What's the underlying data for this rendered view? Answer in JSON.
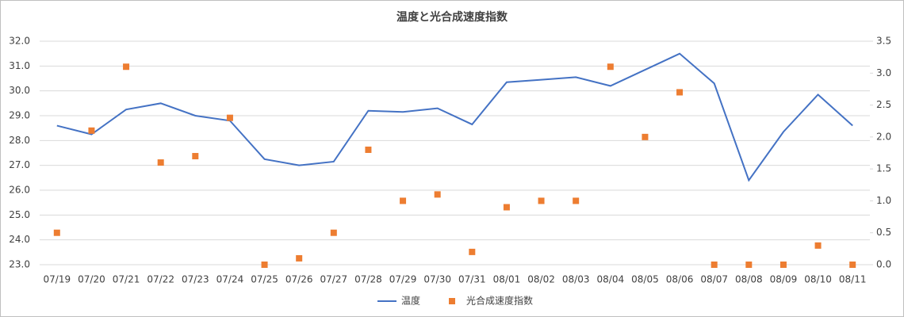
{
  "chart_data": {
    "type": "combo",
    "title": "温度と光合成速度指数",
    "categories": [
      "07/19",
      "07/20",
      "07/21",
      "07/22",
      "07/23",
      "07/24",
      "07/25",
      "07/26",
      "07/27",
      "07/28",
      "07/29",
      "07/30",
      "07/31",
      "08/01",
      "08/02",
      "08/03",
      "08/04",
      "08/05",
      "08/06",
      "08/07",
      "08/08",
      "08/09",
      "08/10",
      "08/11"
    ],
    "series": [
      {
        "name": "温度",
        "type": "line",
        "color": "#4472c4",
        "axis": "y",
        "values": [
          28.6,
          28.25,
          29.25,
          29.5,
          29.0,
          28.8,
          27.25,
          27.0,
          27.15,
          29.2,
          29.15,
          29.3,
          28.65,
          30.35,
          30.45,
          30.55,
          30.2,
          30.85,
          31.5,
          30.3,
          26.4,
          28.35,
          29.85,
          28.6
        ]
      },
      {
        "name": "光合成速度指数",
        "type": "scatter",
        "color": "#ed7d31",
        "axis": "y2",
        "values": [
          0.5,
          2.1,
          3.1,
          1.6,
          1.7,
          2.3,
          0.0,
          0.1,
          0.5,
          1.8,
          1.0,
          1.1,
          0.2,
          0.9,
          1.0,
          1.0,
          3.1,
          2.0,
          2.7,
          0.0,
          0.0,
          0.0,
          0.3,
          0.0
        ]
      }
    ],
    "ylim": [
      23,
      32
    ],
    "yticks": [
      {
        "value": 23,
        "label": "23.0"
      },
      {
        "value": 24,
        "label": "24.0"
      },
      {
        "value": 25,
        "label": "25.0"
      },
      {
        "value": 26,
        "label": "26.0"
      },
      {
        "value": 27,
        "label": "27.0"
      },
      {
        "value": 28,
        "label": "28.0"
      },
      {
        "value": 29,
        "label": "29.0"
      },
      {
        "value": 30,
        "label": "30.0"
      },
      {
        "value": 31,
        "label": "31.0"
      },
      {
        "value": 32,
        "label": "32.0"
      }
    ],
    "y2lim": [
      0,
      3.5
    ],
    "y2ticks": [
      {
        "value": 0,
        "label": "0.0"
      },
      0.5,
      {
        "value": 1,
        "label": "1.0"
      },
      1.5,
      {
        "value": 2,
        "label": "2.0"
      },
      2.5,
      {
        "value": 3,
        "label": "3.0"
      },
      3.5
    ],
    "grid": true,
    "legend": "bottom"
  }
}
